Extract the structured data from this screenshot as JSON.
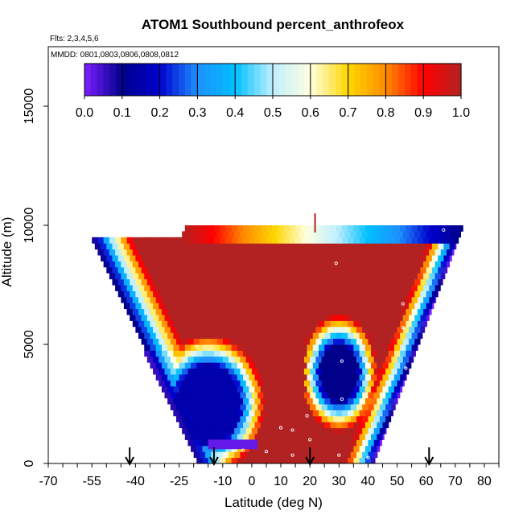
{
  "chart_data": {
    "type": "heatmap",
    "title": "ATOM1 Southbound percent_anthrofeox",
    "flights_label": "Flts: 2,3,4,5,6",
    "dates_label": "MMDD: 0801,0803,0806,0808,0812",
    "xlabel": "Latitude (deg N)",
    "ylabel": "Altitude (m)",
    "xlim": [
      -70,
      85
    ],
    "ylim": [
      0,
      17500
    ],
    "x_ticks": [
      "-70",
      "-55",
      "-40",
      "-25",
      "-10",
      "0",
      "10",
      "20",
      "30",
      "40",
      "50",
      "60",
      "70",
      "80"
    ],
    "x_tick_values": [
      -70,
      -55,
      -40,
      -25,
      -10,
      0,
      10,
      20,
      30,
      40,
      50,
      60,
      70,
      80
    ],
    "y_ticks": [
      "0",
      "5000",
      "10000",
      "15000"
    ],
    "y_tick_values": [
      0,
      5000,
      10000,
      15000
    ],
    "colorbar": {
      "ticks": [
        "0.0",
        "0.1",
        "0.2",
        "0.3",
        "0.4",
        "0.5",
        "0.6",
        "0.7",
        "0.8",
        "0.9",
        "1.0"
      ],
      "range": [
        0,
        1
      ],
      "colors": [
        "#7d1fff",
        "#00008b",
        "#0000cd",
        "#1e90ff",
        "#00bfff",
        "#bfefff",
        "#ffffe0",
        "#ffd700",
        "#ff8c00",
        "#ff0000",
        "#b22222"
      ]
    },
    "arrow_latitudes": [
      -42,
      -13,
      20,
      61
    ],
    "grid": false
  }
}
